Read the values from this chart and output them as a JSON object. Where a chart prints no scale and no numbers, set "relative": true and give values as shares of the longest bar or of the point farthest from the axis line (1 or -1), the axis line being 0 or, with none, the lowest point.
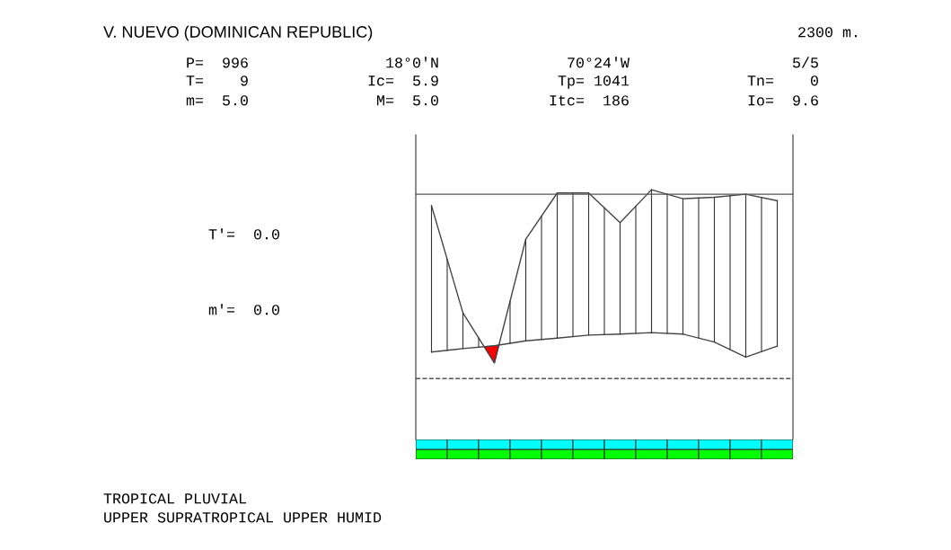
{
  "chart_data": {
    "type": "line",
    "title": "V. NUEVO (DOMINICAN REPUBLIC)",
    "relative": true,
    "categories": [
      null,
      null,
      null,
      null,
      null,
      null,
      null,
      null,
      null,
      null,
      null,
      null
    ],
    "series": [
      {
        "color": "#444444",
        "values": [
          0.936,
          0.507,
          0.306,
          0.802,
          0.987,
          0.987,
          0.868,
          1.0,
          0.964,
          0.97,
          0.982,
          0.956
        ]
      },
      {
        "color": "#444444",
        "values": [
          0.35,
          0.364,
          0.375,
          0.395,
          0.406,
          0.418,
          0.422,
          0.428,
          0.422,
          0.39,
          0.33,
          0.374
        ]
      }
    ],
    "ref_lines": [
      {
        "axis": "y",
        "value": 0.982,
        "line_style": "solid",
        "color": "#555555"
      },
      {
        "axis": "y",
        "value": 0.244,
        "line_style": "dashed",
        "color": "#555555"
      }
    ],
    "annotations": [
      "2300 m.",
      "P=  996",
      "18°0'N",
      "70°24'W",
      "5/5",
      "T=    9",
      "Ic=  5.9",
      "Tp= 1041",
      "Tn=    0",
      "m=  5.0",
      "M=  5.0",
      "Itc=  186",
      "Io=  9.6",
      "T'=  0.0",
      "m'=  0.0",
      "TROPICAL PLUVIAL",
      "UPPER SUPRATROPICAL UPPER HUMID"
    ],
    "grid": false,
    "marker": "none",
    "line_style": "solid"
  }
}
